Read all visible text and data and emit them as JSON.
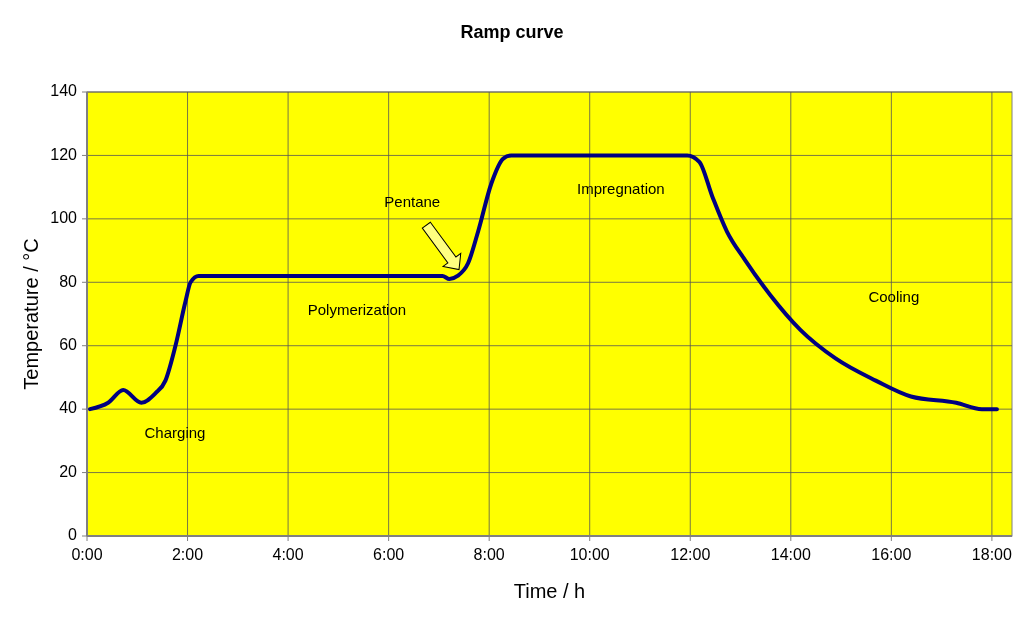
{
  "chart_data": {
    "type": "line",
    "title": "Ramp curve",
    "xlabel": "Time / h",
    "ylabel": "Temperature / °C",
    "xlim": [
      0,
      18.4
    ],
    "ylim": [
      0,
      140
    ],
    "xticks": [
      {
        "value": 0,
        "label": "0:00"
      },
      {
        "value": 2,
        "label": "2:00"
      },
      {
        "value": 4,
        "label": "4:00"
      },
      {
        "value": 6,
        "label": "6:00"
      },
      {
        "value": 8,
        "label": "8:00"
      },
      {
        "value": 10,
        "label": "10:00"
      },
      {
        "value": 12,
        "label": "12:00"
      },
      {
        "value": 14,
        "label": "14:00"
      },
      {
        "value": 16,
        "label": "16:00"
      },
      {
        "value": 18,
        "label": "18:00"
      }
    ],
    "yticks": [
      0,
      20,
      40,
      60,
      80,
      100,
      120,
      140
    ],
    "grid": true,
    "marker": "none",
    "line_style": "solid",
    "series": [
      {
        "color": "#000080",
        "x": [
          0.06,
          0.42,
          0.72,
          1.08,
          1.36,
          1.56,
          1.76,
          1.96,
          2.06,
          2.22,
          7.07,
          7.21,
          7.37,
          7.58,
          7.78,
          8.04,
          8.28,
          8.44,
          11.94,
          12.18,
          12.44,
          12.73,
          13.09,
          13.59,
          14.19,
          14.89,
          15.69,
          16.39,
          17.29,
          17.8,
          18.1
        ],
        "values": [
          40,
          42,
          46,
          42,
          45,
          49,
          60,
          74,
          80,
          82,
          82,
          81,
          82,
          86,
          96,
          111,
          119,
          120,
          120,
          118,
          107,
          96,
          87,
          76,
          65,
          56,
          49,
          44,
          42,
          40,
          40
        ]
      }
    ],
    "annotations": [
      "Charging",
      "Polymerization",
      "Pentane",
      "Impregnation",
      "Cooling"
    ]
  }
}
